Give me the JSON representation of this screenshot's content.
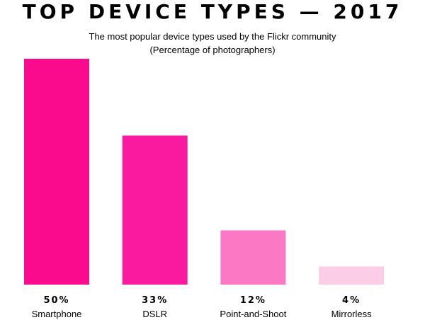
{
  "chart_data": {
    "type": "bar",
    "title": "TOP DEVICE TYPES — 2017",
    "subtitle": "The most popular device types used by the Flickr community",
    "subtitle2": "(Percentage of photographers)",
    "xlabel": "",
    "ylabel": "",
    "ylim": [
      0,
      50
    ],
    "grid": false,
    "categories": [
      "Smartphone",
      "DSLR",
      "Point-and-Shoot",
      "Mirrorless"
    ],
    "values": [
      50,
      33,
      12,
      4
    ],
    "value_labels": [
      "50%",
      "33%",
      "12%",
      "4%"
    ],
    "colors": [
      "#fa0a8c",
      "#fa1aa0",
      "#fa78c4",
      "#fccde6"
    ]
  }
}
